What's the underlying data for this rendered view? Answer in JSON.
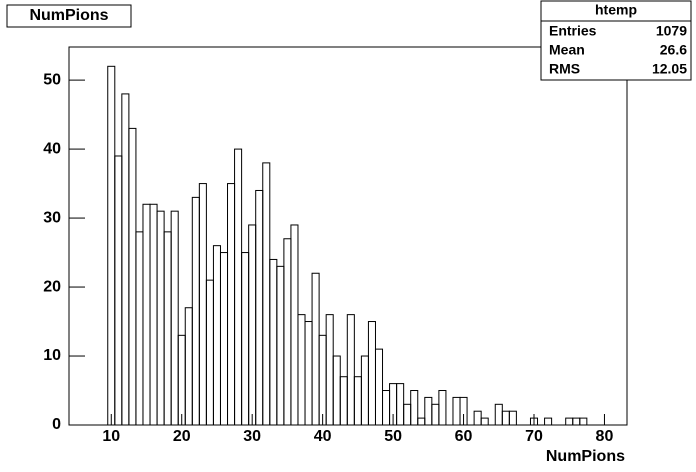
{
  "chart_data": {
    "type": "histogram",
    "title": "NumPions",
    "x_label": "NumPions",
    "stats": {
      "name": "htemp",
      "rows": [
        [
          "Entries",
          "1079"
        ],
        [
          "Mean",
          "26.6"
        ],
        [
          "RMS",
          "12.05"
        ]
      ]
    },
    "bins": [
      9.5,
      10.5,
      11.5,
      12.5,
      13.5,
      14.5,
      15.5,
      16.5,
      17.5,
      18.5,
      19.5,
      20.5,
      21.5,
      22.5,
      23.5,
      24.5,
      25.5,
      26.5,
      27.5,
      28.5,
      29.5,
      30.5,
      31.5,
      32.5,
      33.5,
      34.5,
      35.5,
      36.5,
      37.5,
      38.5,
      39.5,
      40.5,
      41.5,
      42.5,
      43.5,
      44.5,
      45.5,
      46.5,
      47.5,
      48.5,
      49.5,
      50.5,
      51.5,
      52.5,
      53.5,
      54.5,
      55.5,
      56.5,
      57.5,
      58.5,
      59.5,
      60.5,
      61.5,
      62.5,
      63.5,
      64.5,
      65.5,
      66.5,
      67.5,
      68.5,
      69.5,
      70.5,
      71.5,
      72.5,
      73.5,
      74.5,
      75.5,
      76.5,
      77.5,
      78.5,
      79.5,
      80.5
    ],
    "values": [
      52,
      39,
      48,
      43,
      28,
      32,
      32,
      31,
      28,
      31,
      13,
      17,
      33,
      35,
      21,
      26,
      25,
      35,
      40,
      25,
      29,
      34,
      38,
      24,
      23,
      27,
      29,
      16,
      15,
      22,
      13,
      16,
      10,
      7,
      16,
      7,
      10,
      15,
      11,
      5,
      6,
      6,
      3,
      5,
      1,
      4,
      3,
      5,
      0,
      4,
      4,
      0,
      2,
      1,
      0,
      3,
      2,
      2,
      0,
      0,
      1,
      0,
      1,
      0,
      0,
      1,
      1,
      1,
      0,
      0,
      0
    ],
    "color": "#000000",
    "xlim": [
      4,
      83.2
    ],
    "ylim": [
      0,
      54.8
    ],
    "xticks": [
      10,
      20,
      30,
      40,
      50,
      60,
      70,
      80
    ],
    "yticks": [
      0,
      10,
      20,
      30,
      40,
      50
    ]
  }
}
